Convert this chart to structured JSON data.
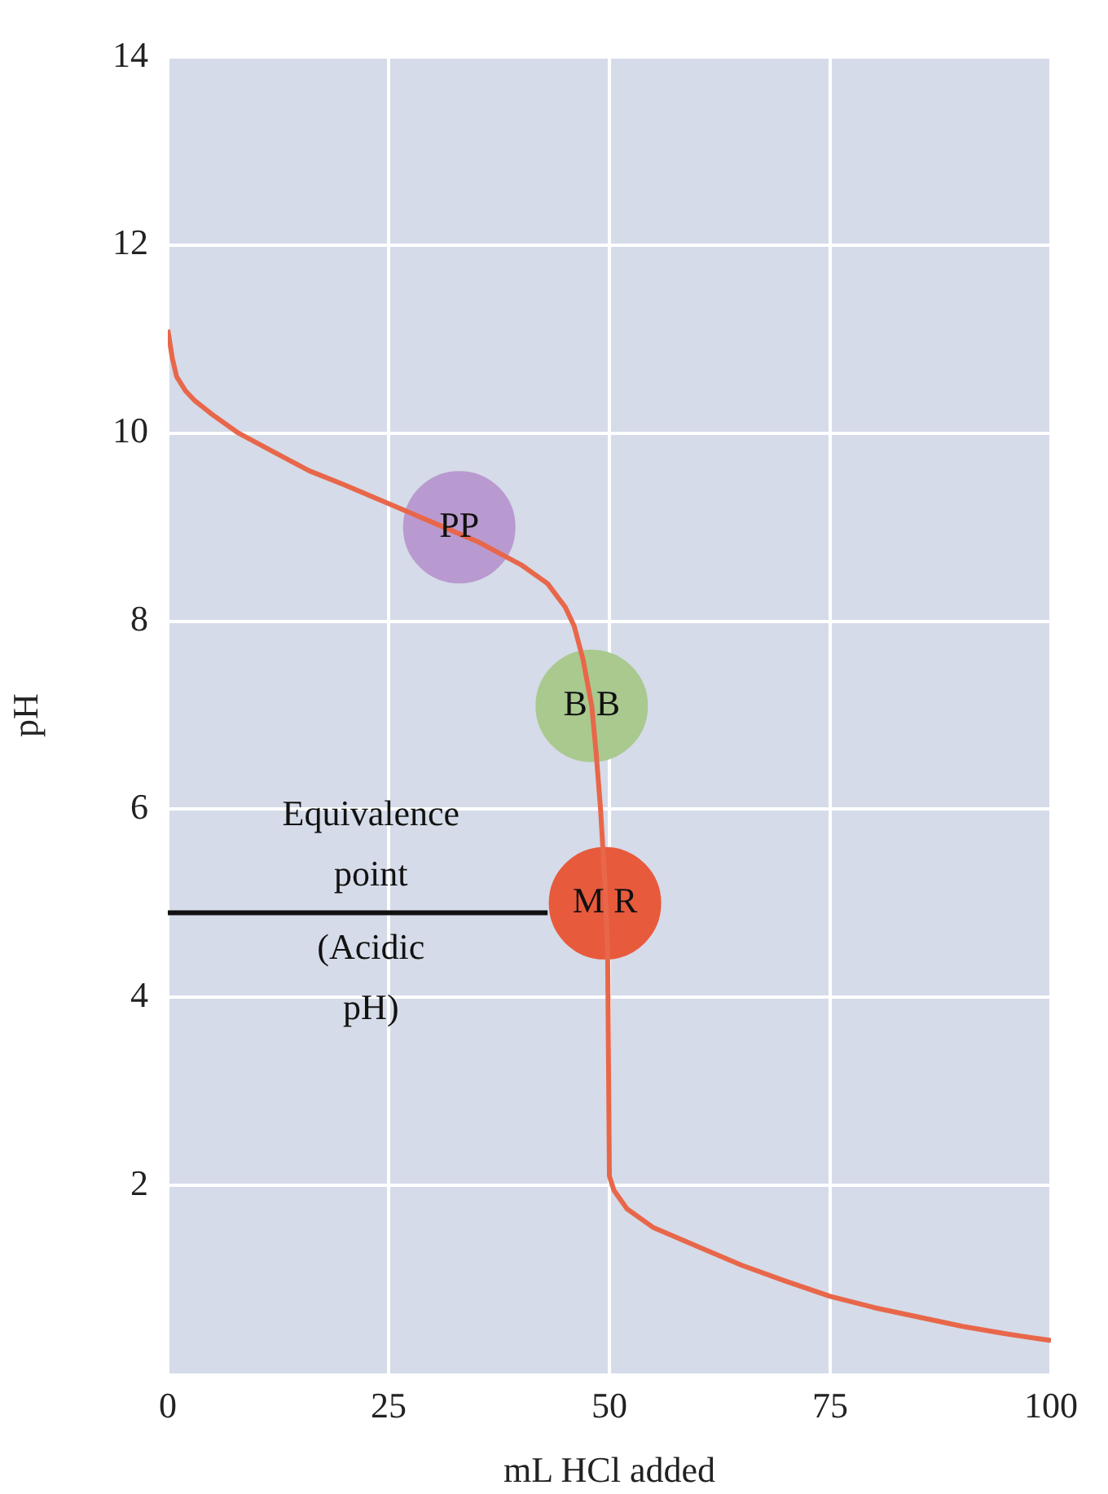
{
  "chart_data": {
    "type": "line",
    "xlabel": "mL HCl added",
    "ylabel": "pH",
    "xlim": [
      0,
      100
    ],
    "xticks": [
      0,
      25,
      50,
      75,
      100
    ],
    "ylim": [
      0,
      14
    ],
    "yticks": [
      2,
      4,
      6,
      8,
      10,
      12,
      14
    ],
    "grid": true,
    "series": [
      {
        "marker": "none",
        "color": "#e8674a",
        "x": [
          0,
          0.5,
          1,
          2,
          3,
          5,
          8,
          12,
          16,
          20,
          25,
          30,
          35,
          40,
          43,
          45,
          46,
          47,
          48,
          48.5,
          49,
          49.5,
          49.8,
          50,
          50.5,
          52,
          55,
          60,
          65,
          70,
          75,
          80,
          85,
          90,
          95,
          100
        ],
        "values": [
          11.1,
          10.8,
          10.6,
          10.45,
          10.35,
          10.2,
          10.0,
          9.8,
          9.6,
          9.45,
          9.25,
          9.05,
          8.85,
          8.6,
          8.4,
          8.15,
          7.95,
          7.6,
          7.1,
          6.6,
          6.0,
          5.2,
          4.5,
          2.1,
          1.95,
          1.75,
          1.55,
          1.35,
          1.15,
          0.98,
          0.82,
          0.7,
          0.6,
          0.5,
          0.42,
          0.35
        ]
      },
      {
        "type": "scatter",
        "name": "PP",
        "marker": "circle",
        "color": "#b99ad0",
        "x": [
          33
        ],
        "values": [
          9.0
        ]
      },
      {
        "type": "scatter",
        "name": "B B",
        "marker": "circle",
        "color": "#a9c98f",
        "x": [
          48
        ],
        "values": [
          7.1
        ]
      },
      {
        "type": "scatter",
        "name": "M R",
        "marker": "circle",
        "color": "#e85a3c",
        "x": [
          49.5
        ],
        "values": [
          5.0
        ]
      },
      {
        "marker": "none",
        "color": "#111111",
        "x": [
          0,
          43
        ],
        "values": [
          4.9,
          4.9
        ]
      }
    ],
    "annotations": [
      {
        "text": "Equivalence point (Acidic pH)",
        "x": 23,
        "y": 4.9
      }
    ]
  }
}
